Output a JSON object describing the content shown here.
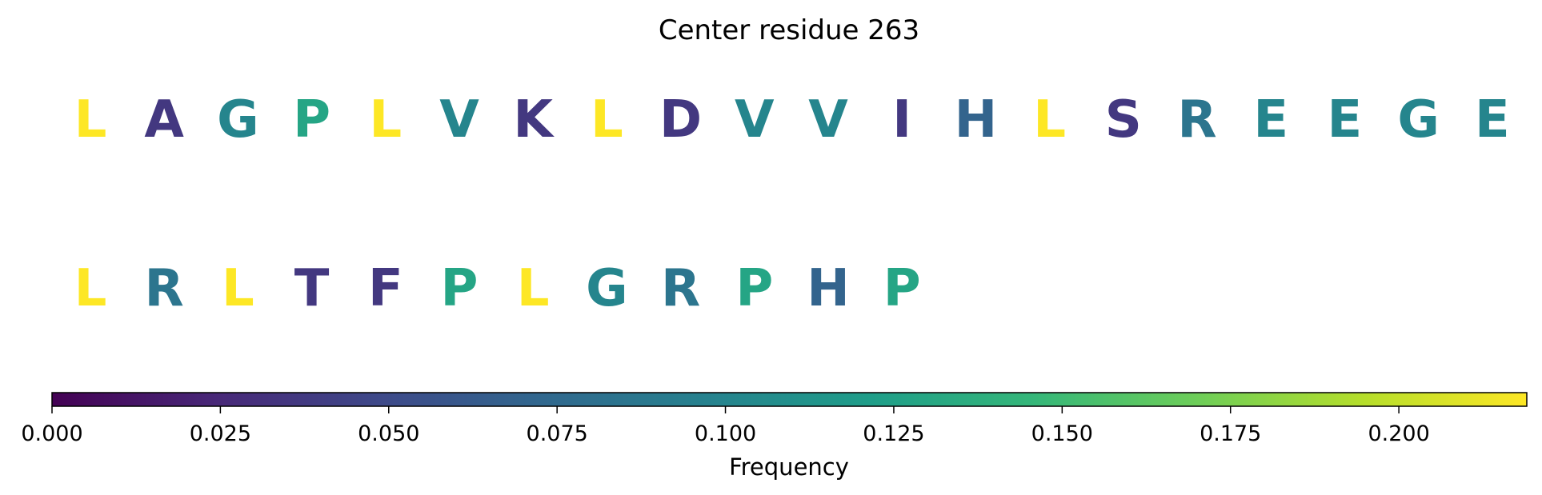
{
  "chart_data": {
    "type": "heatmap",
    "title": "Center residue 263",
    "rows": [
      {
        "residues": [
          "L",
          "A",
          "G",
          "P",
          "L",
          "V",
          "K",
          "L",
          "D",
          "V",
          "V",
          "I",
          "H",
          "L",
          "S",
          "R",
          "E",
          "E",
          "G",
          "E"
        ],
        "frequencies": [
          0.219,
          0.036,
          0.1,
          0.128,
          0.219,
          0.1,
          0.036,
          0.219,
          0.036,
          0.1,
          0.1,
          0.036,
          0.07,
          0.219,
          0.036,
          0.085,
          0.1,
          0.1,
          0.1,
          0.1
        ]
      },
      {
        "residues": [
          "L",
          "R",
          "L",
          "T",
          "F",
          "P",
          "L",
          "G",
          "R",
          "P",
          "H",
          "P"
        ],
        "frequencies": [
          0.219,
          0.085,
          0.219,
          0.036,
          0.036,
          0.128,
          0.219,
          0.1,
          0.085,
          0.128,
          0.07,
          0.128
        ]
      }
    ],
    "colorbar": {
      "label": "Frequency",
      "colormap": "viridis",
      "range": [
        0,
        0.219
      ],
      "ticks": [
        0,
        0.025,
        0.05,
        0.075,
        0.1,
        0.125,
        0.15,
        0.175,
        0.2
      ],
      "tick_labels": [
        "0.000",
        "0.025",
        "0.050",
        "0.075",
        "0.100",
        "0.125",
        "0.150",
        "0.175",
        "0.200"
      ],
      "placement": "bottom"
    },
    "colors": {
      "viridis": [
        "#440154",
        "#482878",
        "#3e4989",
        "#31688e",
        "#26828e",
        "#1f9e89",
        "#35b779",
        "#6ece58",
        "#b5de2b",
        "#fde725"
      ]
    }
  }
}
